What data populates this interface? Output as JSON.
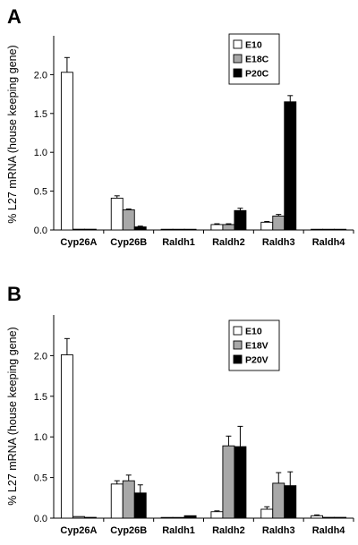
{
  "chart_data": [
    {
      "type": "bar",
      "panel": "A",
      "title": "",
      "xlabel": "",
      "ylabel": "% L27 mRNA (house keeping gene)",
      "ylim": [
        0,
        2.5
      ],
      "yticks": [
        "0.0",
        "0.5",
        "1.0",
        "1.5",
        "2.0"
      ],
      "categories": [
        "Cyp26A",
        "Cyp26B",
        "Raldh1",
        "Raldh2",
        "Raldh3",
        "Raldh4"
      ],
      "legend_position": "top-right",
      "series": [
        {
          "name": "E10",
          "color": "#ffffff",
          "values": [
            2.03,
            0.41,
            0.005,
            0.07,
            0.1,
            0.005
          ],
          "errors": [
            0.19,
            0.03,
            0.0,
            0.01,
            0.01,
            0.0
          ]
        },
        {
          "name": "E18C",
          "color": "#a8a8a8",
          "values": [
            0.01,
            0.26,
            0.005,
            0.07,
            0.18,
            0.005
          ],
          "errors": [
            0.0,
            0.01,
            0.0,
            0.01,
            0.02,
            0.0
          ]
        },
        {
          "name": "P20C",
          "color": "#000000",
          "values": [
            0.01,
            0.04,
            0.005,
            0.25,
            1.65,
            0.005
          ],
          "errors": [
            0.0,
            0.01,
            0.0,
            0.03,
            0.08,
            0.0
          ]
        }
      ]
    },
    {
      "type": "bar",
      "panel": "B",
      "title": "",
      "xlabel": "",
      "ylabel": "% L27 mRNA (house keeping gene)",
      "ylim": [
        0,
        2.5
      ],
      "yticks": [
        "0.0",
        "0.5",
        "1.0",
        "1.5",
        "2.0"
      ],
      "categories": [
        "Cyp26A",
        "Cyp26B",
        "Raldh1",
        "Raldh2",
        "Raldh3",
        "Raldh4"
      ],
      "legend_position": "top-right",
      "series": [
        {
          "name": "E10",
          "color": "#ffffff",
          "values": [
            2.01,
            0.42,
            0.0,
            0.08,
            0.11,
            0.03
          ],
          "errors": [
            0.2,
            0.04,
            0.0,
            0.01,
            0.03,
            0.01
          ]
        },
        {
          "name": "E18V",
          "color": "#a8a8a8",
          "values": [
            0.02,
            0.46,
            0.0,
            0.89,
            0.43,
            0.01
          ],
          "errors": [
            0.0,
            0.07,
            0.0,
            0.12,
            0.13,
            0.0
          ]
        },
        {
          "name": "P20V",
          "color": "#000000",
          "values": [
            0.01,
            0.31,
            0.03,
            0.88,
            0.4,
            0.01
          ],
          "errors": [
            0.0,
            0.1,
            0.0,
            0.25,
            0.17,
            0.0
          ]
        }
      ]
    }
  ]
}
